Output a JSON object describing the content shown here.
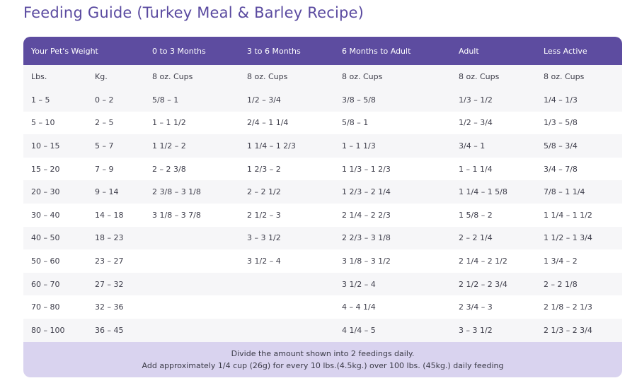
{
  "title": "Feeding Guide (Turkey Meal & Barley Recipe)",
  "columns": [
    "Your Pet's Weight",
    "0 to 3 Months",
    "3 to 6 Months",
    "6 Months to Adult",
    "Adult",
    "Less Active"
  ],
  "units": [
    "Lbs.",
    "Kg.",
    "8 oz. Cups",
    "8 oz. Cups",
    "8 oz. Cups",
    "8 oz. Cups",
    "8 oz. Cups"
  ],
  "rows": [
    [
      "1 – 5",
      "0 – 2",
      "5/8 – 1",
      "1/2 – 3/4",
      "3/8 – 5/8",
      "1/3 – 1/2",
      "1/4 – 1/3"
    ],
    [
      "5 – 10",
      "2 – 5",
      "1 – 1 1/2",
      "2/4 – 1 1/4",
      "5/8 – 1",
      "1/2 – 3/4",
      "1/3 – 5/8"
    ],
    [
      "10 – 15",
      "5 – 7",
      "1 1/2 – 2",
      "1 1/4 – 1 2/3",
      "1 – 1 1/3",
      "3/4 – 1",
      "5/8 – 3/4"
    ],
    [
      "15 – 20",
      "7 – 9",
      "2 – 2 3/8",
      "1 2/3 – 2",
      "1 1/3 – 1 2/3",
      "1 – 1 1/4",
      "3/4 – 7/8"
    ],
    [
      "20 – 30",
      "9 – 14",
      "2 3/8 – 3 1/8",
      "2 – 2 1/2",
      "1 2/3 – 2 1/4",
      "1 1/4 – 1 5/8",
      "7/8 – 1 1/4"
    ],
    [
      "30 – 40",
      "14 – 18",
      "3 1/8 – 3 7/8",
      "2 1/2 – 3",
      "2 1/4 – 2 2/3",
      "1 5/8 – 2",
      "1 1/4 – 1 1/2"
    ],
    [
      "40 – 50",
      "18 – 23",
      "",
      "3 – 3 1/2",
      "2 2/3 – 3 1/8",
      "2 – 2 1/4",
      "1 1/2 – 1 3/4"
    ],
    [
      "50 – 60",
      "23 – 27",
      "",
      "3 1/2 – 4",
      "3 1/8 – 3 1/2",
      "2 1/4 – 2 1/2",
      "1 3/4 – 2"
    ],
    [
      "60 – 70",
      "27 – 32",
      "",
      "",
      "3 1/2 – 4",
      "2 1/2 – 2 3/4",
      "2 – 2 1/8"
    ],
    [
      "70 – 80",
      "32 – 36",
      "",
      "",
      "4 – 4 1/4",
      "2 3/4 – 3",
      "2 1/8 – 2 1/3"
    ],
    [
      "80 – 100",
      "36 – 45",
      "",
      "",
      "4 1/4 – 5",
      "3 – 3 1/2",
      "2 1/3 – 2 3/4"
    ]
  ],
  "footer": {
    "line1": "Divide the amount shown into 2 feedings daily.",
    "line2": "Add approximately 1/4 cup (26g) for every 10 lbs.(4.5kg.) over 100 lbs. (45kg.) daily feeding"
  }
}
